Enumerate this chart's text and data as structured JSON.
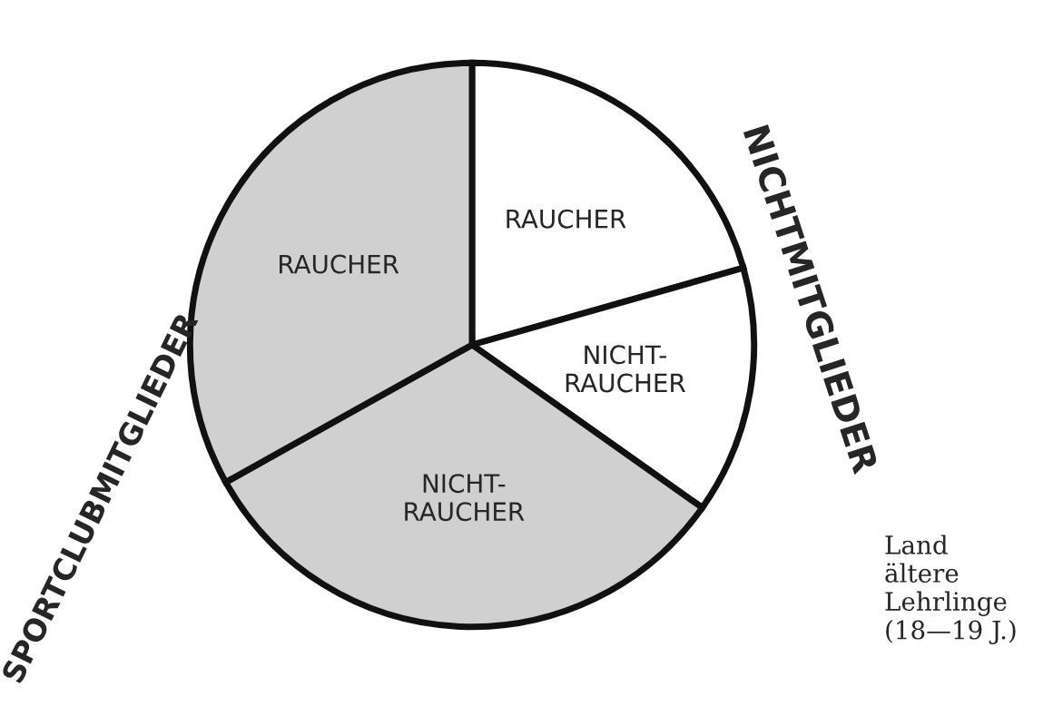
{
  "chart_data": {
    "type": "pie",
    "categories": [
      "RAUCHER",
      "NICHT-\nRAUCHER",
      "NICHT-\nRAUCHER",
      "RAUCHER"
    ],
    "values": [
      20.6,
      14.2,
      32.1,
      33.1
    ],
    "colors": [
      "#ffffff",
      "#ffffff",
      "#d0d0d0",
      "#d0d0d0"
    ],
    "annotations": [
      "NICHTMITGLIEDER",
      "SPORTCLUBMITGLIEDER",
      "Land\nältere\nLehrlinge\n(18—19 J.)"
    ],
    "legend": false
  }
}
